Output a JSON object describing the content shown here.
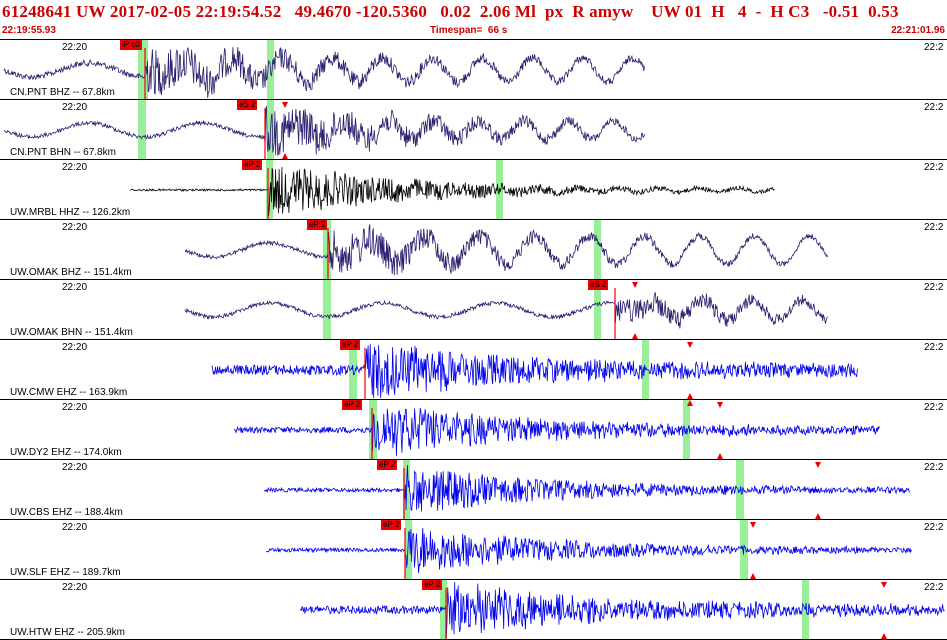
{
  "header": {
    "title": "61248641 UW 2017-02-05 22:19:54.52   49.4670 -120.5360   0.02  2.06 Ml  px  R amyw    UW 01  H   4  -  H C3   -0.51  0.53",
    "start_time": "22:19:55.93",
    "timespan": "Timespan=  66 s",
    "end_time": "22:21:01.96"
  },
  "tick": {
    "left": "22:20",
    "right": "22:2"
  },
  "colors": {
    "header_red": "#cc0000",
    "pick_red": "#ee0000",
    "trace_dark": "#2a1f6e",
    "trace_black": "#000000",
    "trace_blue": "#0000ee",
    "window_green": "#99ee99"
  },
  "traces": [
    {
      "label": "CN.PNT BHZ -- 67.8km",
      "color_key": "trace_dark",
      "pick": "iP c0"
    },
    {
      "label": "CN.PNT BHN -- 67.8km",
      "color_key": "trace_dark",
      "pick": "eS 2"
    },
    {
      "label": "UW.MRBL HHZ -- 126.2km",
      "color_key": "trace_black",
      "pick": "eP 2"
    },
    {
      "label": "UW.OMAK BHZ -- 151.4km",
      "color_key": "trace_dark",
      "pick": "eP 2"
    },
    {
      "label": "UW.OMAK BHN -- 151.4km",
      "color_key": "trace_dark",
      "pick": "eS 2"
    },
    {
      "label": "UW.CMW EHZ -- 163.9km",
      "color_key": "trace_blue",
      "pick": "eP 2"
    },
    {
      "label": "UW.DY2 EHZ -- 174.0km",
      "color_key": "trace_blue",
      "pick": "eP 2"
    },
    {
      "label": "UW.CBS EHZ -- 188.4km",
      "color_key": "trace_blue",
      "pick": "eP 2"
    },
    {
      "label": "UW.SLF EHZ -- 189.7km",
      "color_key": "trace_blue",
      "pick": "eP 2"
    },
    {
      "label": "UW.HTW EHZ -- 205.9km",
      "color_key": "trace_blue",
      "pick": "eP 2"
    }
  ]
}
